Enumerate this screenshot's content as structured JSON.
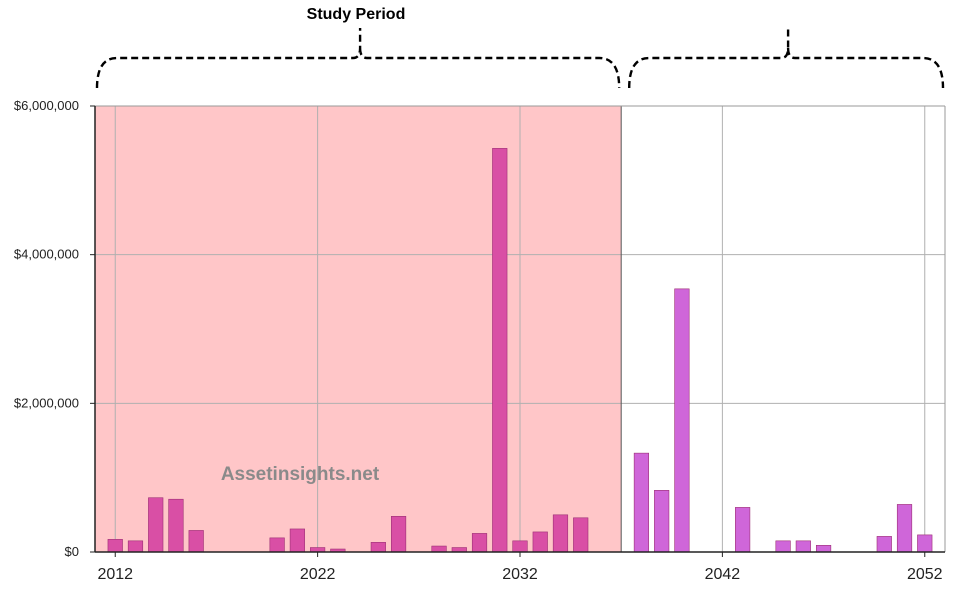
{
  "chart_data": {
    "type": "bar",
    "title": "",
    "xlabel": "",
    "ylabel": "",
    "x_range": [
      2011,
      2053
    ],
    "ylim": [
      0,
      6000000
    ],
    "y_ticks": [
      0,
      2000000,
      4000000,
      6000000
    ],
    "y_tick_labels": [
      "$0",
      "$2,000,000",
      "$4,000,000",
      "$6,000,000"
    ],
    "x_ticks": [
      2012,
      2022,
      2032,
      2042,
      2052
    ],
    "x_tick_labels": [
      "2012",
      "2022",
      "2032",
      "2042",
      "2052"
    ],
    "grid": true,
    "study_period": {
      "label": "Study Period",
      "start_year": 2011,
      "end_year": 2037,
      "color": "#ffc6c8"
    },
    "second_period": {
      "label": "",
      "start_year": 2037,
      "end_year": 2053
    },
    "watermark": "Assetinsights.net",
    "series": [
      {
        "color": "#d94fa5",
        "x": [
          2012,
          2013,
          2014,
          2015,
          2016,
          2020,
          2021,
          2022,
          2023,
          2025,
          2026,
          2028,
          2029,
          2030,
          2031,
          2032,
          2033,
          2034,
          2035
        ],
        "values": [
          170000,
          150000,
          730000,
          710000,
          290000,
          190000,
          310000,
          60000,
          40000,
          130000,
          480000,
          80000,
          60000,
          250000,
          5430000,
          150000,
          270000,
          500000,
          460000
        ]
      },
      {
        "color": "#cf66d9",
        "x": [
          2038,
          2039,
          2040,
          2041,
          2043,
          2045,
          2046,
          2047,
          2050,
          2051,
          2052
        ],
        "values": [
          1330000,
          830000,
          3540000,
          0,
          600000,
          150000,
          150000,
          90000,
          210000,
          640000,
          230000
        ]
      }
    ]
  }
}
